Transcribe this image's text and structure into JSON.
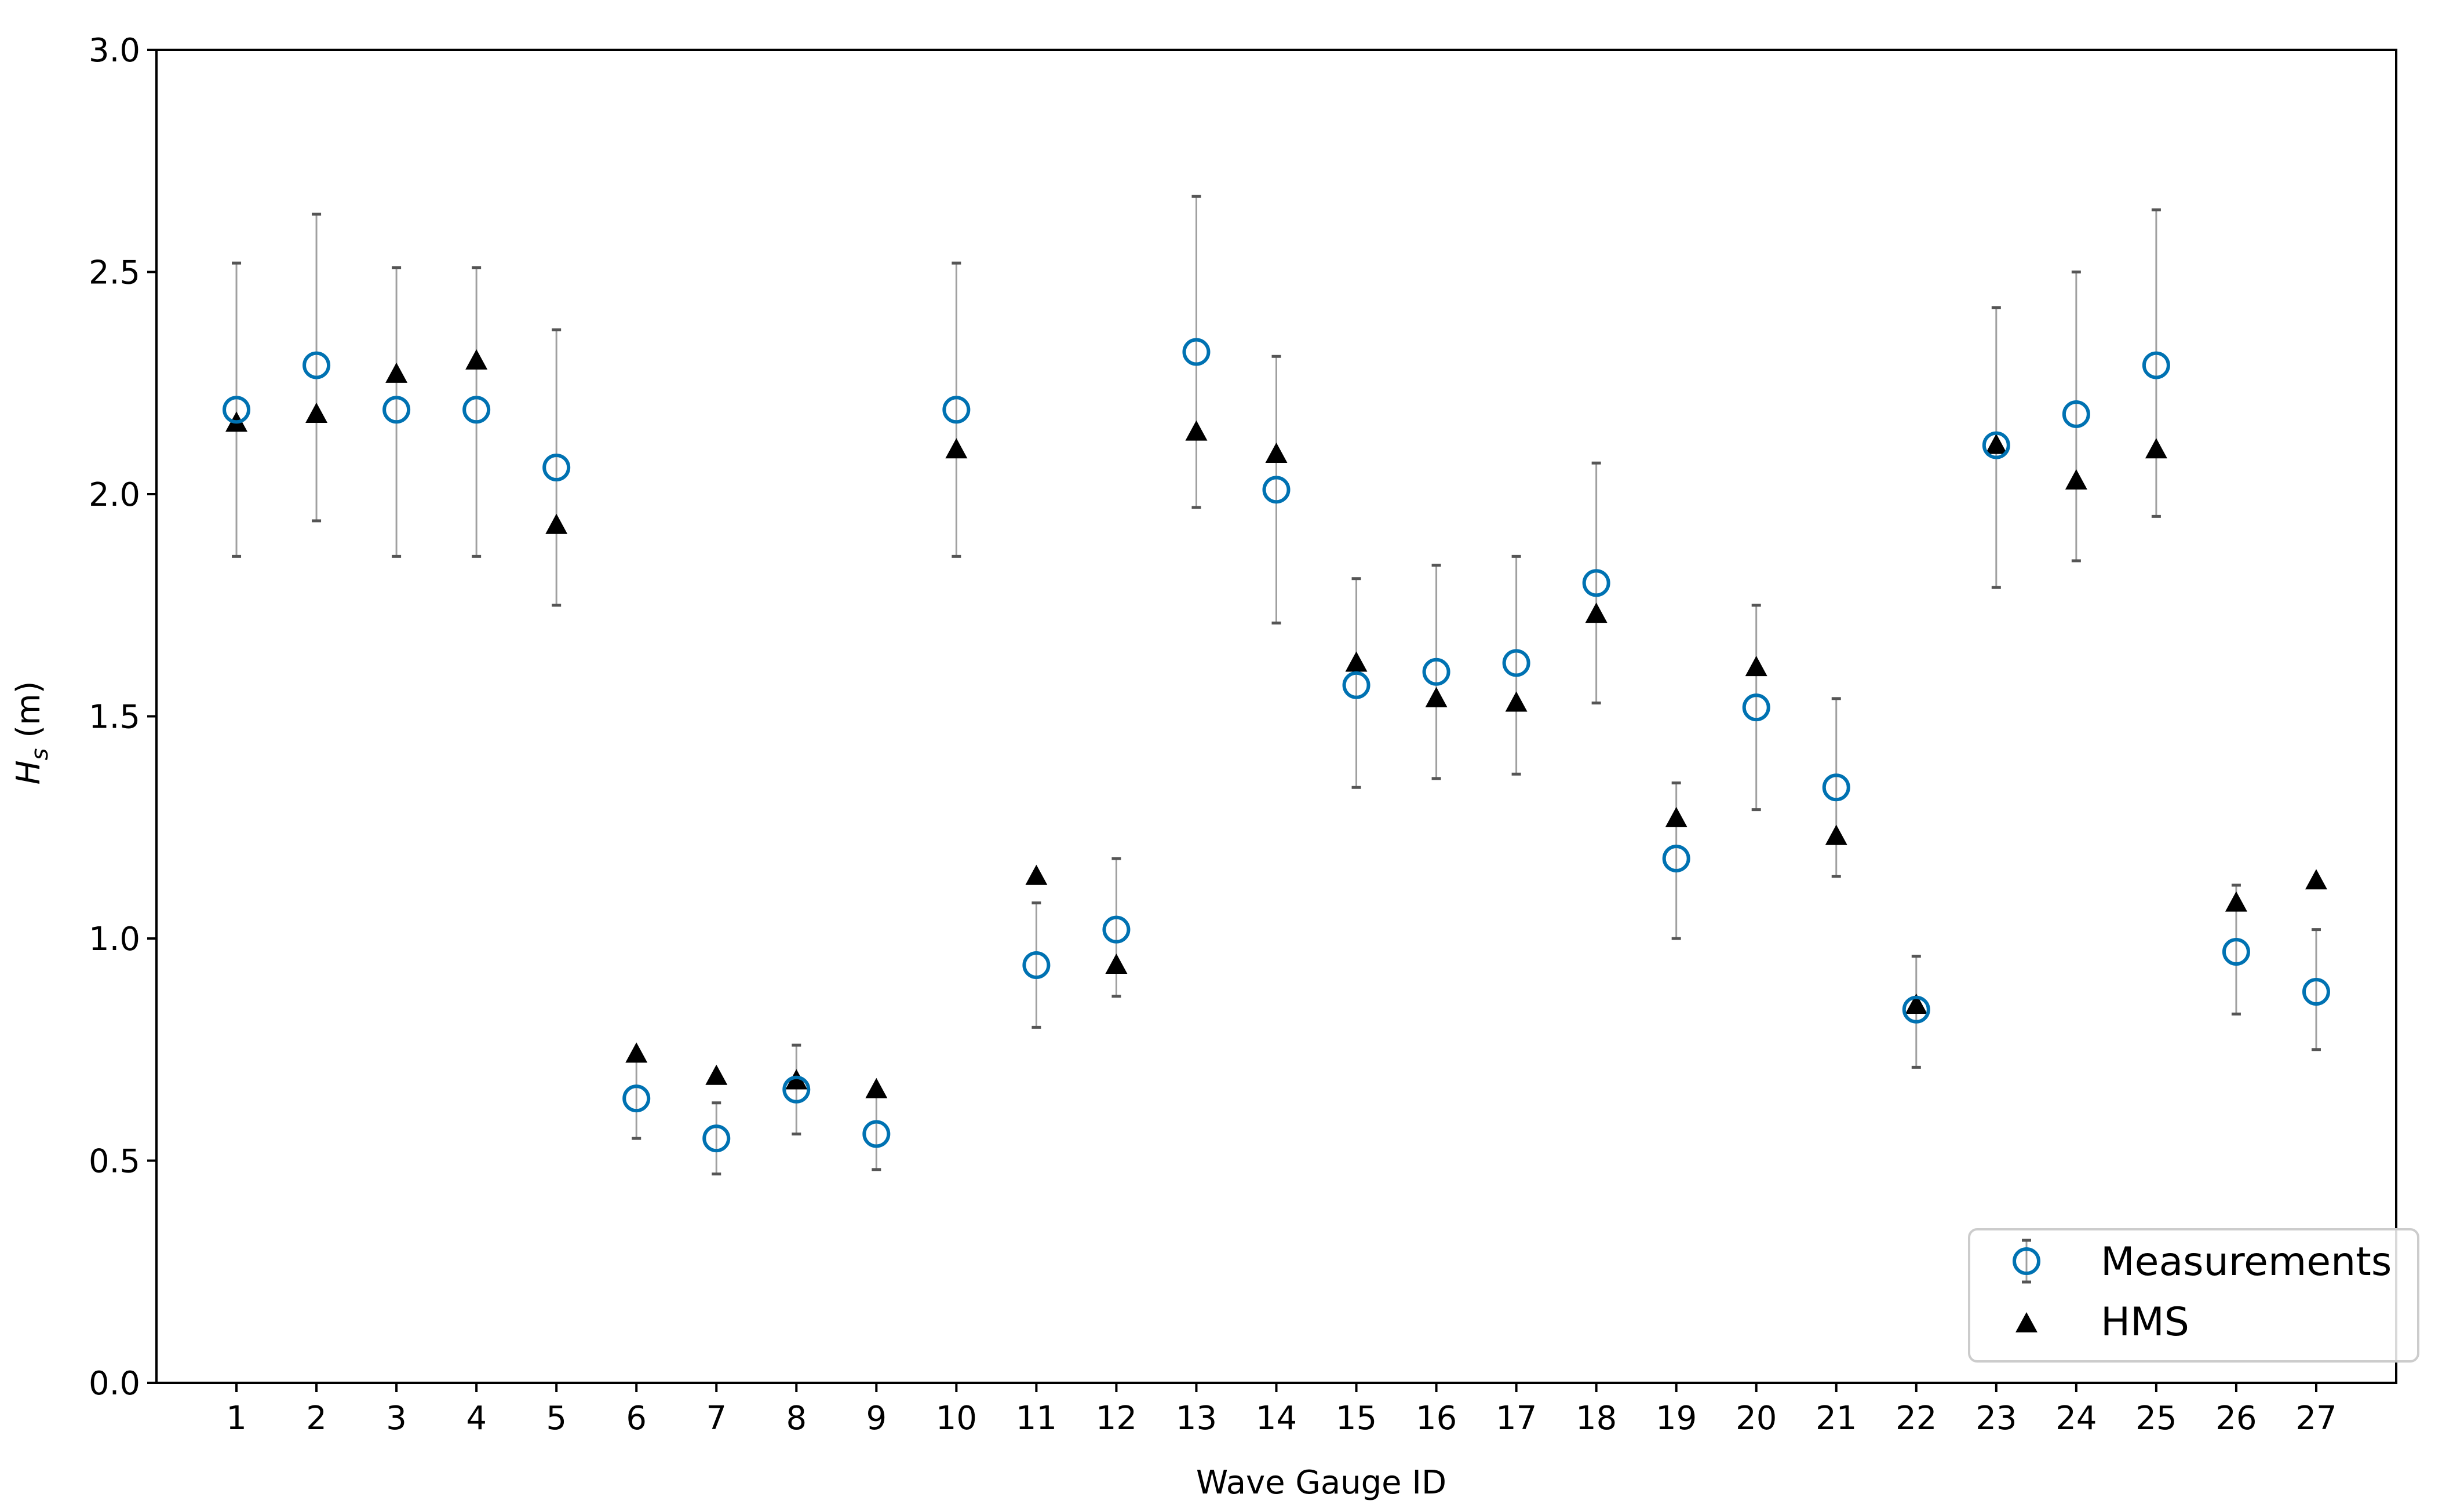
{
  "chart_data": {
    "type": "scatter",
    "xlabel": "Wave Gauge ID",
    "ylabel": "H",
    "ylabel_sub": "s",
    "ylabel_unit": "(m)",
    "ylim": [
      0.0,
      3.0
    ],
    "yticks": [
      0.0,
      0.5,
      1.0,
      1.5,
      2.0,
      2.5,
      3.0
    ],
    "ytick_labels": [
      "0.0",
      "0.5",
      "1.0",
      "1.5",
      "2.0",
      "2.5",
      "3.0"
    ],
    "x": [
      1,
      2,
      3,
      4,
      5,
      6,
      7,
      8,
      9,
      10,
      11,
      12,
      13,
      14,
      15,
      16,
      17,
      18,
      19,
      20,
      21,
      22,
      23,
      24,
      25,
      26,
      27
    ],
    "xtick_labels": [
      "1",
      "2",
      "3",
      "4",
      "5",
      "6",
      "7",
      "8",
      "9",
      "10",
      "11",
      "12",
      "13",
      "14",
      "15",
      "16",
      "17",
      "18",
      "19",
      "20",
      "21",
      "22",
      "23",
      "24",
      "25",
      "26",
      "27"
    ],
    "grid": false,
    "legend_position": "lower right",
    "series": [
      {
        "name": "Measurements",
        "marker": "open-circle",
        "color": "#0072b2",
        "values": [
          2.19,
          2.29,
          2.19,
          2.19,
          2.06,
          0.64,
          0.55,
          0.66,
          0.56,
          2.19,
          0.94,
          1.02,
          2.32,
          2.01,
          1.57,
          1.6,
          1.62,
          1.8,
          1.18,
          1.52,
          1.34,
          0.84,
          2.11,
          2.18,
          2.29,
          0.97,
          0.88
        ],
        "error_low": [
          1.86,
          1.94,
          1.86,
          1.86,
          1.75,
          0.55,
          0.47,
          0.56,
          0.48,
          1.86,
          0.8,
          0.87,
          1.97,
          1.71,
          1.34,
          1.36,
          1.37,
          1.53,
          1.0,
          1.29,
          1.14,
          0.71,
          1.79,
          1.85,
          1.95,
          0.83,
          0.75
        ],
        "error_high": [
          2.52,
          2.63,
          2.51,
          2.51,
          2.37,
          0.74,
          0.63,
          0.76,
          0.66,
          2.52,
          1.08,
          1.18,
          2.67,
          2.31,
          1.81,
          1.84,
          1.86,
          2.07,
          1.35,
          1.75,
          1.54,
          0.96,
          2.42,
          2.5,
          2.64,
          1.12,
          1.02
        ],
        "error_color": "#a0a0a0"
      },
      {
        "name": "HMS",
        "marker": "filled-triangle",
        "color": "#000000",
        "values": [
          2.16,
          2.18,
          2.27,
          2.3,
          1.93,
          0.74,
          0.69,
          0.68,
          0.66,
          2.1,
          1.14,
          0.94,
          2.14,
          2.09,
          1.62,
          1.54,
          1.53,
          1.73,
          1.27,
          1.61,
          1.23,
          0.85,
          2.11,
          2.03,
          2.1,
          1.08,
          1.13
        ]
      }
    ]
  }
}
